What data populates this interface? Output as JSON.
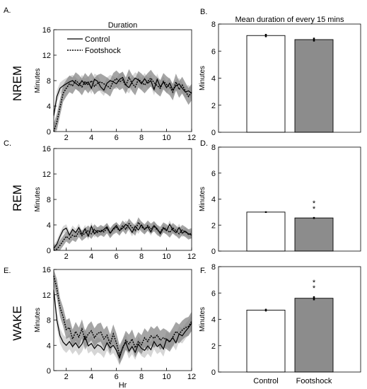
{
  "panels": {
    "A": "A.",
    "B": "B.",
    "C": "C.",
    "D": "D.",
    "E": "E.",
    "F": "F."
  },
  "row_labels": [
    "NREM",
    "REM",
    "WAKE"
  ],
  "legend": [
    "Control",
    "Footshock"
  ],
  "colors": {
    "control_line": "#000000",
    "footshock_line": "#000000",
    "control_band": "#c8c8c8",
    "footshock_band": "#7f7f7f",
    "control_bar": "#ffffff",
    "footshock_bar": "#8c8c8c"
  },
  "chart_data": [
    {
      "id": "A",
      "type": "line",
      "title": "Duration",
      "xlabel": "",
      "ylabel": "Minutes",
      "xlim": [
        1,
        12
      ],
      "ylim": [
        0,
        16
      ],
      "xticks": [
        2,
        4,
        6,
        8,
        10,
        12
      ],
      "yticks": [
        0,
        4,
        8,
        12,
        16
      ],
      "x": [
        1,
        1.25,
        1.5,
        1.75,
        2,
        2.25,
        2.5,
        2.75,
        3,
        3.25,
        3.5,
        3.75,
        4,
        4.25,
        4.5,
        4.75,
        5,
        5.25,
        5.5,
        5.75,
        6,
        6.25,
        6.5,
        6.75,
        7,
        7.25,
        7.5,
        7.75,
        8,
        8.25,
        8.5,
        8.75,
        9,
        9.25,
        9.5,
        9.75,
        10,
        10.25,
        10.5,
        10.75,
        11,
        11.25,
        11.5,
        11.75,
        12
      ],
      "series": [
        {
          "name": "Control",
          "style": "solid",
          "values": [
            2.5,
            5.5,
            6.8,
            7.2,
            7.5,
            7.8,
            8,
            7.6,
            7.2,
            8,
            7.4,
            7.8,
            6.8,
            8.2,
            7.9,
            7,
            6.5,
            7.6,
            8,
            7.8,
            7.5,
            8.2,
            8.5,
            7.3,
            6.9,
            7.8,
            8.4,
            8.1,
            7.5,
            8.3,
            7.6,
            8,
            6.6,
            8.2,
            7,
            7.8,
            6.9,
            7.6,
            6.5,
            7.2,
            7.5,
            6.8,
            6.2,
            6.4,
            6
          ],
          "band": 0.9
        },
        {
          "name": "Footshock",
          "style": "dotted",
          "values": [
            0,
            1.5,
            3.8,
            6,
            6.8,
            7.5,
            7.2,
            8,
            7.6,
            7,
            7.9,
            7.3,
            8,
            7.1,
            7.6,
            7.8,
            7.5,
            7.2,
            6.8,
            7.9,
            8.3,
            7.8,
            8.1,
            7.2,
            8.5,
            7.6,
            7,
            8.2,
            7.8,
            7.3,
            7.9,
            8.4,
            7.7,
            7.2,
            6.8,
            7.9,
            7.4,
            7,
            6.2,
            7.8,
            6.6,
            7.3,
            6.4,
            5.5,
            6.2
          ],
          "band": 1.3
        }
      ]
    },
    {
      "id": "B",
      "type": "bar",
      "title": "Mean duration of every 15 mins",
      "ylabel": "Minutes",
      "ylim": [
        0,
        8
      ],
      "yticks": [
        0,
        2,
        4,
        6,
        8
      ],
      "categories": [
        "Control",
        "Footshock"
      ],
      "values": [
        7.15,
        6.85
      ],
      "errors": [
        0.12,
        0.14
      ],
      "significance": [
        "",
        ""
      ]
    },
    {
      "id": "C",
      "type": "line",
      "title": "",
      "xlabel": "",
      "ylabel": "Minutes",
      "xlim": [
        1,
        12
      ],
      "ylim": [
        0,
        16
      ],
      "xticks": [
        2,
        4,
        6,
        8,
        10,
        12
      ],
      "yticks": [
        0,
        4,
        8,
        12,
        16
      ],
      "x": [
        1,
        1.25,
        1.5,
        1.75,
        2,
        2.25,
        2.5,
        2.75,
        3,
        3.25,
        3.5,
        3.75,
        4,
        4.25,
        4.5,
        4.75,
        5,
        5.25,
        5.5,
        5.75,
        6,
        6.25,
        6.5,
        6.75,
        7,
        7.25,
        7.5,
        7.75,
        8,
        8.25,
        8.5,
        8.75,
        9,
        9.25,
        9.5,
        9.75,
        10,
        10.25,
        10.5,
        10.75,
        11,
        11.25,
        11.5,
        11.75,
        12
      ],
      "series": [
        {
          "name": "Control",
          "style": "solid",
          "values": [
            0.3,
            1,
            2.2,
            3.2,
            3.5,
            2.4,
            3.3,
            2.8,
            3.6,
            2.5,
            3.4,
            2.2,
            3.8,
            2.6,
            3.1,
            2.9,
            3.3,
            3.7,
            2.7,
            3.4,
            3.9,
            3.1,
            3.5,
            4.1,
            3.6,
            2.8,
            3.8,
            3.2,
            4,
            3.3,
            3.7,
            2.9,
            3.9,
            3.4,
            2.6,
            3.5,
            3.1,
            4.1,
            3.2,
            2.8,
            3.6,
            2.7,
            3,
            2.6,
            2.4
          ],
          "band": 0.6
        },
        {
          "name": "Footshock",
          "style": "dotted",
          "values": [
            0,
            0.2,
            0.8,
            1.5,
            2.2,
            1.8,
            2.4,
            2.1,
            2.9,
            2.3,
            2.7,
            3.1,
            2.6,
            3.3,
            2.8,
            3.2,
            2.9,
            3.5,
            2.7,
            3.3,
            3.6,
            3.1,
            3.9,
            3.3,
            4.2,
            3.6,
            3.1,
            4.4,
            3.7,
            3.3,
            3.9,
            3.4,
            3.8,
            3.2,
            2.9,
            3.6,
            3.3,
            2.8,
            3.5,
            3.1,
            2.6,
            3.2,
            2.9,
            2.5,
            2.7
          ],
          "band": 0.8
        }
      ]
    },
    {
      "id": "D",
      "type": "bar",
      "title": "",
      "ylabel": "Minutes",
      "ylim": [
        0,
        8
      ],
      "yticks": [
        0,
        2,
        4,
        6,
        8
      ],
      "categories": [
        "Control",
        "Footshock"
      ],
      "values": [
        3.0,
        2.55
      ],
      "errors": [
        0.06,
        0.07
      ],
      "significance": [
        "",
        "**"
      ]
    },
    {
      "id": "E",
      "type": "line",
      "title": "",
      "xlabel": "Hr",
      "ylabel": "Minutes",
      "xlim": [
        1,
        12
      ],
      "ylim": [
        0,
        16
      ],
      "xticks": [
        2,
        4,
        6,
        8,
        10,
        12
      ],
      "yticks": [
        0,
        4,
        8,
        12,
        16
      ],
      "x": [
        1,
        1.25,
        1.5,
        1.75,
        2,
        2.25,
        2.5,
        2.75,
        3,
        3.25,
        3.5,
        3.75,
        4,
        4.25,
        4.5,
        4.75,
        5,
        5.25,
        5.5,
        5.75,
        6,
        6.25,
        6.5,
        6.75,
        7,
        7.25,
        7.5,
        7.75,
        8,
        8.25,
        8.5,
        8.75,
        9,
        9.25,
        9.5,
        9.75,
        10,
        10.25,
        10.5,
        10.75,
        11,
        11.25,
        11.5,
        11.75,
        12
      ],
      "series": [
        {
          "name": "Control",
          "style": "solid",
          "values": [
            12.8,
            8,
            5.5,
            4.5,
            4,
            4.6,
            3.8,
            4.4,
            3.6,
            4.2,
            5.4,
            3.9,
            4.3,
            3.5,
            4.1,
            3.8,
            3.2,
            4.4,
            3.6,
            4,
            3.2,
            2,
            3.7,
            4.5,
            3.1,
            3.8,
            2.9,
            4.2,
            3.5,
            3.2,
            3.9,
            3.3,
            4.6,
            3.8,
            4.2,
            3.4,
            5,
            4.6,
            5.2,
            4.4,
            5.8,
            5.5,
            6.2,
            6.8,
            7.5
          ],
          "band": 1.2
        },
        {
          "name": "Footshock",
          "style": "dotted",
          "values": [
            15,
            13,
            10,
            8.5,
            6.5,
            6.8,
            5,
            6.2,
            5.3,
            6.6,
            4.8,
            5.8,
            6.3,
            5.2,
            5.9,
            6.1,
            5,
            5.6,
            4.2,
            5.8,
            4.4,
            2.5,
            3.5,
            4.8,
            4.2,
            5,
            3.6,
            4.6,
            4.1,
            5.2,
            4.6,
            5.5,
            5.1,
            5.6,
            4.8,
            5.2,
            4.9,
            4.5,
            5.3,
            6.2,
            5.8,
            6.4,
            6.8,
            7,
            7.8
          ],
          "band": 1.5
        }
      ]
    },
    {
      "id": "F",
      "type": "bar",
      "title": "",
      "ylabel": "Minutes",
      "ylim": [
        0,
        8
      ],
      "yticks": [
        0,
        2,
        4,
        6,
        8
      ],
      "categories": [
        "Control",
        "Footshock"
      ],
      "values": [
        4.7,
        5.6
      ],
      "errors": [
        0.1,
        0.15
      ],
      "significance": [
        "",
        "**"
      ]
    }
  ]
}
